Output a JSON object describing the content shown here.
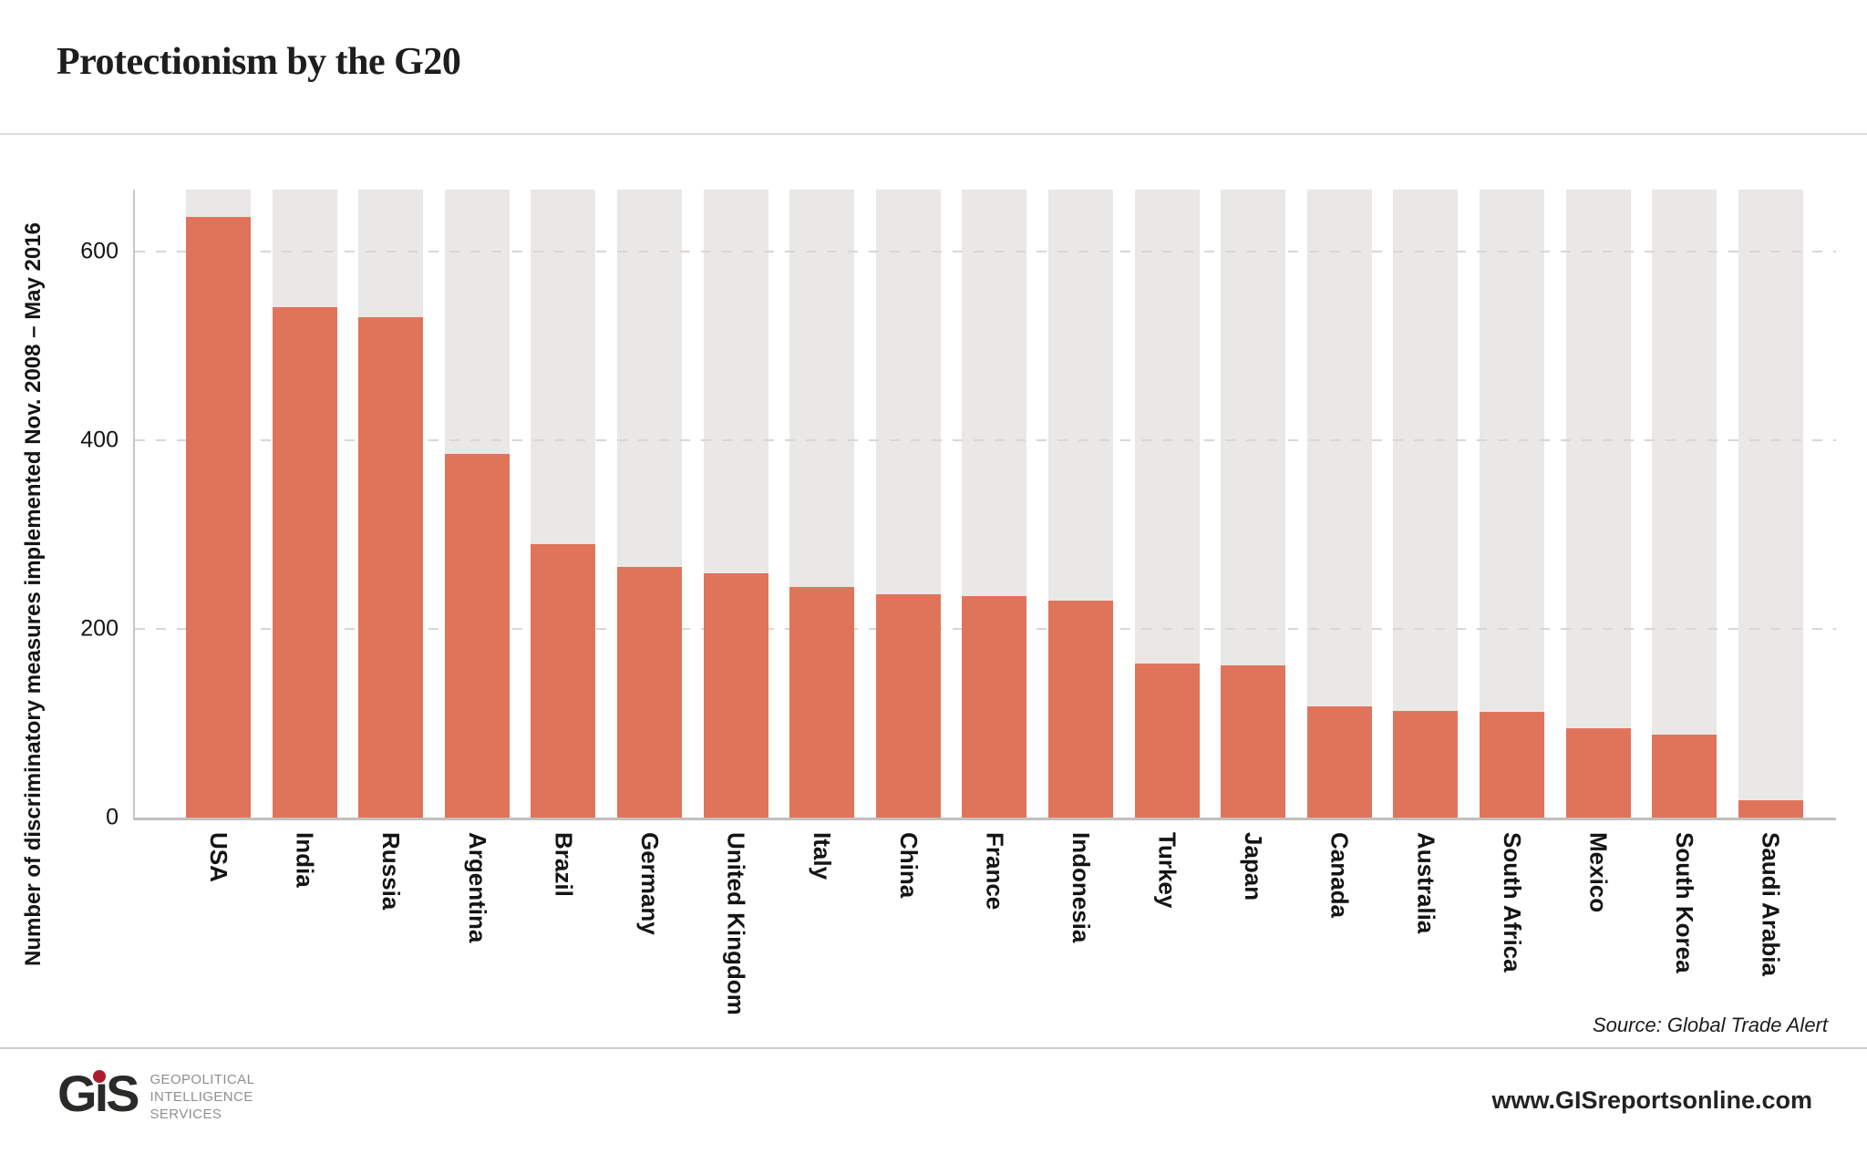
{
  "header": {
    "title": "Protectionism by the G20"
  },
  "chart_data": {
    "type": "bar",
    "title": "Protectionism by the G20",
    "categories": [
      "USA",
      "India",
      "Russia",
      "Argentina",
      "Brazil",
      "Germany",
      "United Kingdom",
      "Italy",
      "China",
      "France",
      "Indonesia",
      "Turkey",
      "Japan",
      "Canada",
      "Australia",
      "South Africa",
      "Mexico",
      "South Korea",
      "Saudi Arabia"
    ],
    "values": [
      637,
      541,
      531,
      386,
      290,
      266,
      259,
      245,
      237,
      235,
      230,
      163,
      161,
      118,
      113,
      112,
      95,
      88,
      18
    ],
    "xlabel": "",
    "ylabel": "Number of discriminatory measures implemented Nov. 2008 – May 2016",
    "yticks": [
      0,
      200,
      400,
      600
    ],
    "ylim": [
      0,
      666
    ],
    "grid": "dashed horizontal at 200/400/600",
    "legend": "none",
    "bar_color": "#e0745a",
    "track_color": "#e9e8e6",
    "source": "Source: Global Trade Alert"
  },
  "footer": {
    "logo_g": "G",
    "logo_i": "ı",
    "logo_s": "S",
    "tagline": [
      "GEOPOLITICAL",
      "INTELLIGENCE",
      "SERVICES"
    ],
    "website": "www.GISreportsonline.com"
  }
}
